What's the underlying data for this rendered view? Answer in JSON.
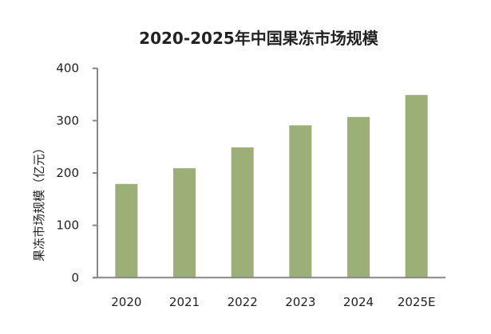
{
  "chart_data": {
    "type": "bar",
    "title": "2020-2025年中国果冻市场规模",
    "xlabel": "",
    "ylabel": "果冻市场规模（亿元）",
    "categories": [
      "2020",
      "2021",
      "2022",
      "2023",
      "2024",
      "2025E"
    ],
    "values": [
      179,
      209,
      249,
      291,
      307,
      349
    ],
    "ylim": [
      0,
      400
    ],
    "yticks": [
      0,
      100,
      200,
      300,
      400
    ],
    "grid": false,
    "legend": "none",
    "bar_color": "#9caf76",
    "axis_color": "#888888"
  }
}
